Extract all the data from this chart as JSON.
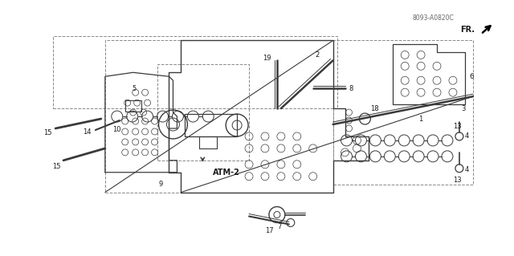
{
  "bg_color": "#ffffff",
  "fig_width": 6.4,
  "fig_height": 3.19,
  "dpi": 100,
  "diagram_code": "8093-A0820C",
  "lc": "#3a3a3a",
  "tc": "#1a1a1a",
  "dc": "#888888"
}
